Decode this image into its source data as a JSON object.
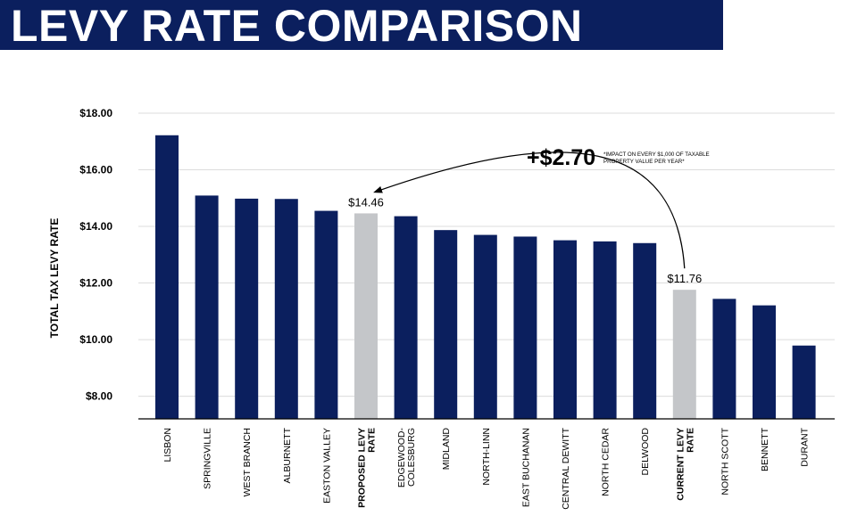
{
  "header": {
    "title": "LEVY RATE COMPARISON"
  },
  "colors": {
    "primary": "#0b1f5e",
    "highlight": "#c4c6c9",
    "grid": "#dcdcdc"
  },
  "chart_data": {
    "type": "bar",
    "title": "LEVY RATE COMPARISON",
    "ylabel": "TOTAL TAX LEVY RATE",
    "xlabel": "",
    "ylim": [
      7.2,
      18.0
    ],
    "yticks": [
      "$8.00",
      "$10.00",
      "$12.00",
      "$14.00",
      "$16.00",
      "$18.00"
    ],
    "ytick_values": [
      8,
      10,
      12,
      14,
      16,
      18
    ],
    "grid": true,
    "categories": [
      [
        "LISBON"
      ],
      [
        "SPRINGVILLE"
      ],
      [
        "WEST BRANCH"
      ],
      [
        "ALBURNETT"
      ],
      [
        "EASTON  VALLEY"
      ],
      [
        "PROPOSED LEVY",
        "RATE"
      ],
      [
        "EDGEWOOD-",
        "COLESBURG"
      ],
      [
        "MIDLAND"
      ],
      [
        "NORTH-LINN"
      ],
      [
        "EAST BUCHANAN"
      ],
      [
        "CENTRAL DEWITT"
      ],
      [
        "NORTH CEDAR"
      ],
      [
        "DELWOOD"
      ],
      [
        "CURRENT LEVY",
        "RATE"
      ],
      [
        "NORTH SCOTT"
      ],
      [
        "BENNETT"
      ],
      [
        "DURANT"
      ]
    ],
    "values": [
      17.22,
      15.09,
      14.98,
      14.97,
      14.55,
      14.46,
      14.36,
      13.87,
      13.7,
      13.64,
      13.51,
      13.47,
      13.41,
      11.76,
      11.44,
      11.21,
      9.79
    ],
    "highlight": [
      false,
      false,
      false,
      false,
      false,
      true,
      false,
      false,
      false,
      false,
      false,
      false,
      false,
      true,
      false,
      false,
      false
    ],
    "data_labels": [
      {
        "index": 5,
        "text": "$14.46"
      },
      {
        "index": 13,
        "text": "$11.76"
      }
    ],
    "annotation": {
      "value": "+$2.70",
      "note_line1": "*IMPACT ON EVERY $1,000 OF TAXABLE",
      "note_line2": "PROPERTY VALUE PER YEAR*"
    }
  }
}
